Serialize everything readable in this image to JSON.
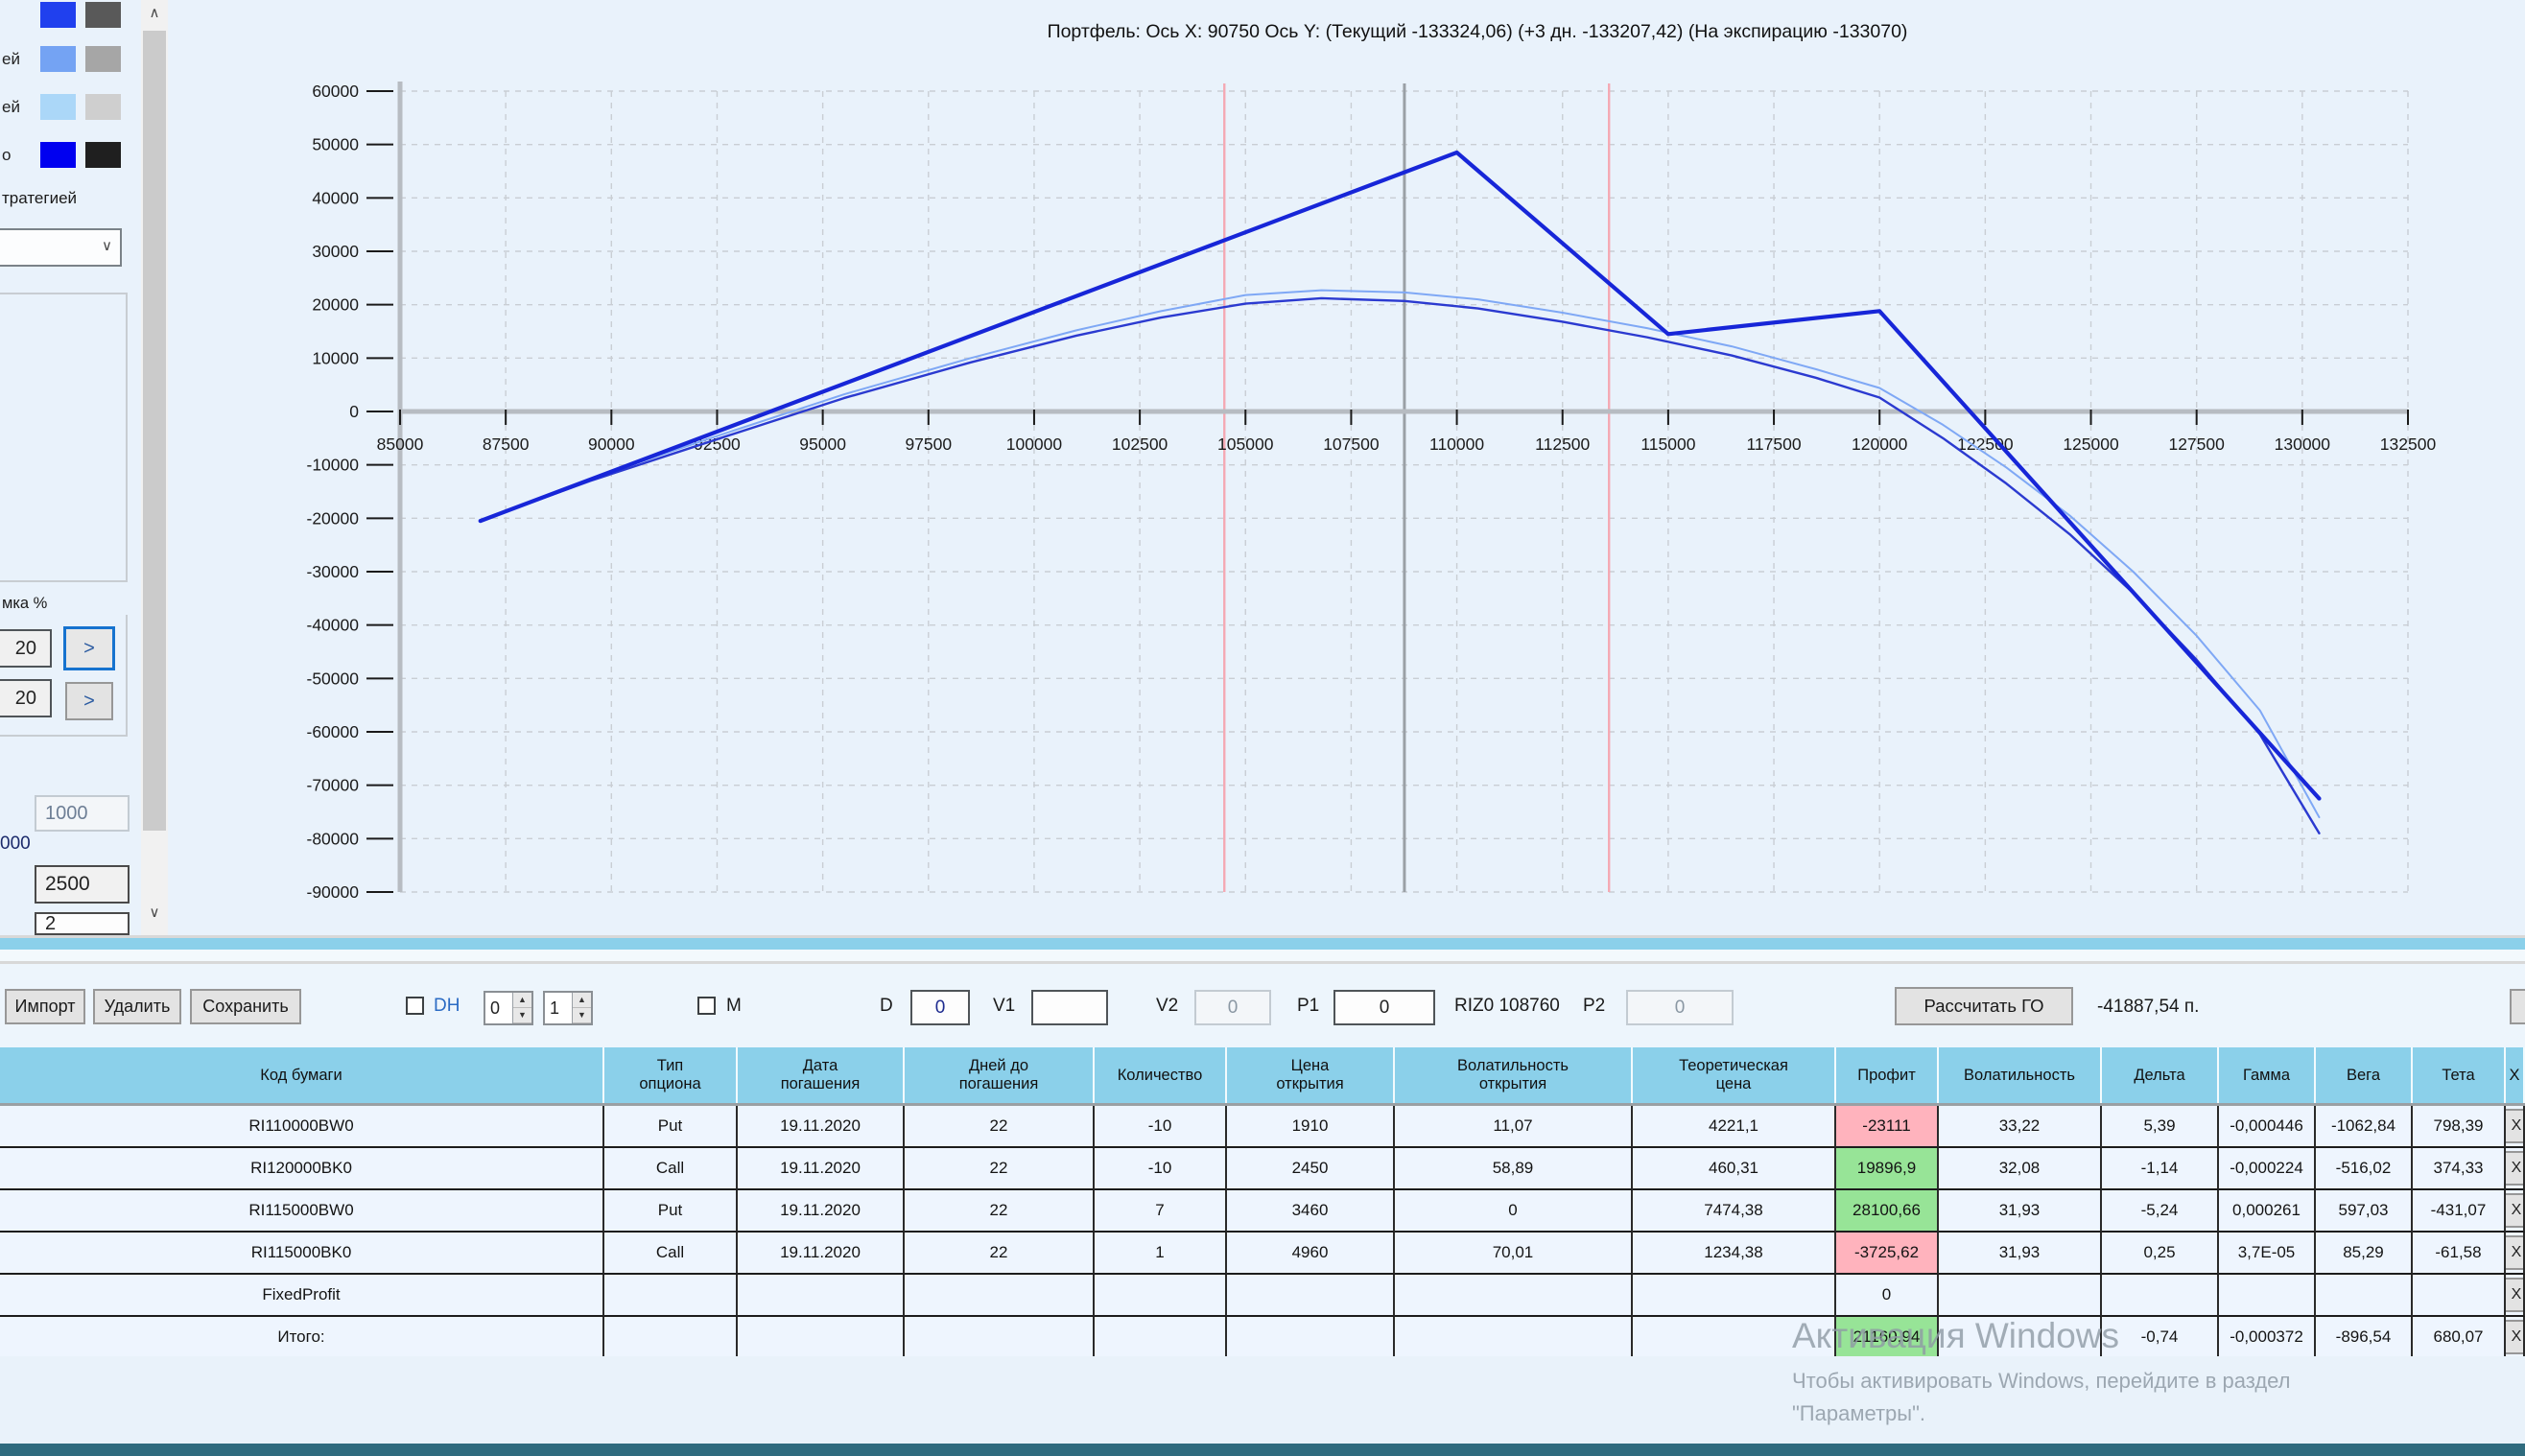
{
  "colors": {
    "header_bg": "#8bd0ea",
    "band": "#8bd0ea",
    "profit_neg": "#ffb3bd",
    "profit_pos": "#97e497",
    "accent_blue": "#2b6bc4",
    "bottom_bar": "#2f6b7e",
    "grid": "#c9ced4",
    "axis": "#b7bcc2"
  },
  "sidebar": {
    "legend_rows": [
      {
        "label": "",
        "fill": "#2040ee",
        "alt": "#595959"
      },
      {
        "label": "ей",
        "fill": "#74a3f3",
        "alt": "#a6a6a6"
      },
      {
        "label": "ей",
        "fill": "#abd7f8",
        "alt": "#cfcfcf"
      },
      {
        "label": "о",
        "fill": "#0000f0",
        "alt": "#1f1f1f"
      }
    ],
    "strategy_label": "тратегией",
    "combo_value": "",
    "shift_group_label": "мка %",
    "shift1_value": "20",
    "shift2_value": "20",
    "arrow_label": ">",
    "input_1000": "1000",
    "label_000": "000",
    "input_2500": "2500",
    "input_partial": "2"
  },
  "chart_data": {
    "type": "line",
    "title": "Портфель: Ось X: 90750  Ось Y:   (Текущий -133324,06)   (+3 дн. -133207,42)   (На экспирацию -133070)",
    "xlim": [
      85000,
      132500
    ],
    "ylim": [
      -90000,
      60000
    ],
    "xtick_step": 2500,
    "ytick_step": 10000,
    "grid": true,
    "vlines": [
      {
        "x": 104500,
        "color": "#f4a9b4",
        "name": "range-lower-line"
      },
      {
        "x": 108760,
        "color": "#9aa0a6",
        "name": "current-price-line"
      },
      {
        "x": 113600,
        "color": "#f4a9b4",
        "name": "range-upper-line"
      }
    ],
    "series": [
      {
        "key": "plus3days",
        "name": "+3 дн.",
        "color": "#7fa8f5",
        "width": 2,
        "points": [
          [
            86900,
            -20400
          ],
          [
            89500,
            -12600
          ],
          [
            92500,
            -4600
          ],
          [
            95500,
            3200
          ],
          [
            98500,
            10000
          ],
          [
            101000,
            15200
          ],
          [
            103000,
            18800
          ],
          [
            105000,
            21800
          ],
          [
            106800,
            22700
          ],
          [
            108760,
            22300
          ],
          [
            110500,
            21000
          ],
          [
            112500,
            18500
          ],
          [
            114500,
            15600
          ],
          [
            116500,
            12200
          ],
          [
            118500,
            7900
          ],
          [
            120000,
            4400
          ],
          [
            121500,
            -2500
          ],
          [
            123000,
            -10500
          ],
          [
            124500,
            -19500
          ],
          [
            126000,
            -30000
          ],
          [
            127500,
            -42000
          ],
          [
            129000,
            -56000
          ],
          [
            130400,
            -76000
          ]
        ]
      },
      {
        "key": "current",
        "name": "Текущий",
        "color": "#2b3ad0",
        "width": 2.4,
        "points": [
          [
            86900,
            -20500
          ],
          [
            89500,
            -13000
          ],
          [
            92500,
            -5200
          ],
          [
            95500,
            2500
          ],
          [
            98500,
            9200
          ],
          [
            101000,
            14200
          ],
          [
            103000,
            17600
          ],
          [
            105000,
            20200
          ],
          [
            106800,
            21200
          ],
          [
            108760,
            20700
          ],
          [
            110500,
            19300
          ],
          [
            112500,
            16800
          ],
          [
            114500,
            13900
          ],
          [
            116500,
            10500
          ],
          [
            118500,
            6300
          ],
          [
            120000,
            2600
          ],
          [
            121500,
            -5000
          ],
          [
            123000,
            -13500
          ],
          [
            124500,
            -23000
          ],
          [
            126000,
            -34000
          ],
          [
            127500,
            -46500
          ],
          [
            129000,
            -60500
          ],
          [
            130400,
            -79000
          ]
        ]
      },
      {
        "key": "expiration",
        "name": "На экспирацию",
        "color": "#1726d8",
        "width": 4.2,
        "points": [
          [
            86900,
            -20500
          ],
          [
            110000,
            48500
          ],
          [
            115000,
            14500
          ],
          [
            120000,
            18800
          ],
          [
            130400,
            -72500
          ]
        ]
      }
    ]
  },
  "toolbar": {
    "import_label": "Импорт",
    "delete_label": "Удалить",
    "save_label": "Сохранить",
    "dh_label": "DH",
    "dh_spin1": "0",
    "dh_spin2": "1",
    "m_label": "M",
    "d_label": "D",
    "d_value": "0",
    "v1_label": "V1",
    "v1_value": "",
    "v2_label": "V2",
    "v2_value": "0",
    "p1_label": "P1",
    "p1_value": "0",
    "instrument": "RIZ0 108760",
    "p2_label": "P2",
    "p2_value": "0",
    "calc_go_label": "Рассчитать ГО",
    "go_value": "-41887,54 п."
  },
  "table": {
    "columns": [
      "Код бумаги",
      "Тип\nопциона",
      "Дата\nпогашения",
      "Дней до\nпогашения",
      "Количество",
      "Цена\nоткрытия",
      "Волатильность\nоткрытия",
      "Теоретическая\nцена",
      "Профит",
      "Волатильность",
      "Дельта",
      "Гамма",
      "Вега",
      "Тета",
      "Х"
    ],
    "row_action_label": "Х",
    "rows": [
      {
        "cells": [
          "RI110000BW0",
          "Put",
          "19.11.2020",
          "22",
          "-10",
          "1910",
          "11,07",
          "4221,1",
          "-23111",
          "33,22",
          "5,39",
          "-0,000446",
          "-1062,84",
          "798,39"
        ],
        "profit": "neg"
      },
      {
        "cells": [
          "RI120000BK0",
          "Call",
          "19.11.2020",
          "22",
          "-10",
          "2450",
          "58,89",
          "460,31",
          "19896,9",
          "32,08",
          "-1,14",
          "-0,000224",
          "-516,02",
          "374,33"
        ],
        "profit": "pos"
      },
      {
        "cells": [
          "RI115000BW0",
          "Put",
          "19.11.2020",
          "22",
          "7",
          "3460",
          "0",
          "7474,38",
          "28100,66",
          "31,93",
          "-5,24",
          "0,000261",
          "597,03",
          "-431,07"
        ],
        "profit": "pos"
      },
      {
        "cells": [
          "RI115000BK0",
          "Call",
          "19.11.2020",
          "22",
          "1",
          "4960",
          "70,01",
          "1234,38",
          "-3725,62",
          "31,93",
          "0,25",
          "3,7E-05",
          "85,29",
          "-61,58"
        ],
        "profit": "neg"
      },
      {
        "cells": [
          "FixedProfit",
          "",
          "",
          "",
          "",
          "",
          "",
          "",
          "0",
          "",
          "",
          "",
          "",
          ""
        ],
        "profit": null
      },
      {
        "cells": [
          "Итого:",
          "",
          "",
          "",
          "",
          "",
          "",
          "",
          "21160,94",
          "",
          "-0,74",
          "-0,000372",
          "-896,54",
          "680,07"
        ],
        "profit": "pos"
      }
    ]
  },
  "watermark": {
    "line1": "Активация Windows",
    "line2": "Чтобы активировать Windows, перейдите в раздел",
    "line3": "\"Параметры\"."
  }
}
